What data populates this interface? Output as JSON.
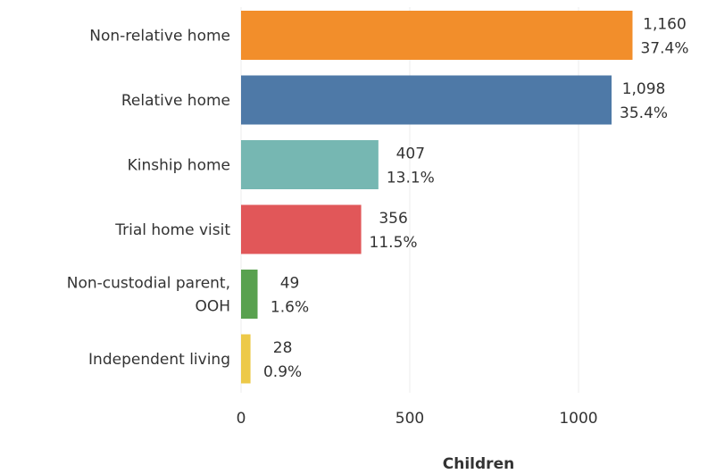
{
  "chart_data": {
    "type": "bar",
    "orientation": "horizontal",
    "categories": [
      [
        "Non-relative home"
      ],
      [
        "Relative home"
      ],
      [
        "Kinship home"
      ],
      [
        "Trial home visit"
      ],
      [
        "Non-custodial parent,",
        "OOH"
      ],
      [
        "Independent living"
      ]
    ],
    "values": [
      1160,
      1098,
      407,
      356,
      49,
      28
    ],
    "value_labels": [
      "1,160",
      "1,098",
      "407",
      "356",
      "49",
      "28"
    ],
    "percent_labels": [
      "37.4%",
      "35.4%",
      "13.1%",
      "11.5%",
      "1.6%",
      "0.9%"
    ],
    "colors": [
      "#F28E2B",
      "#4E79A7",
      "#76B7B2",
      "#E15759",
      "#59A14F",
      "#EDC948"
    ],
    "xlim": [
      0,
      1400
    ],
    "xticks": [
      0,
      500,
      1000
    ],
    "xtick_labels": [
      "0",
      "500",
      "1000"
    ],
    "xlabel": "Children",
    "grid": "vertical"
  }
}
